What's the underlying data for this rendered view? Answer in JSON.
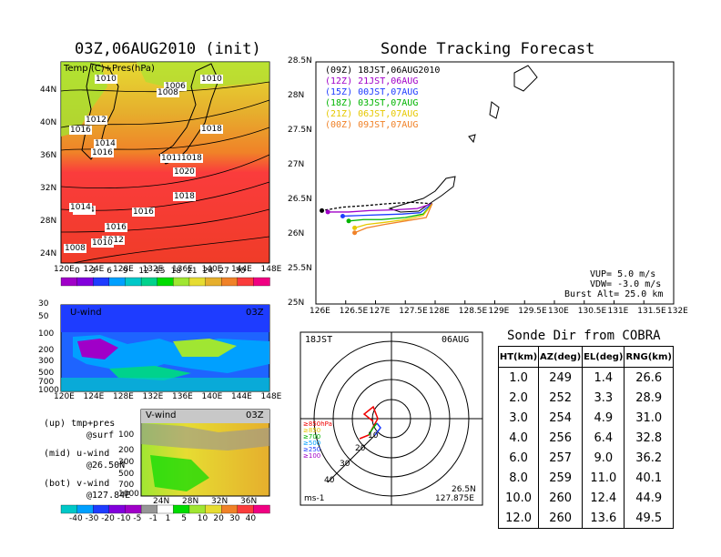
{
  "init_panel": {
    "title": "03Z,06AUG2010 (init)",
    "field_label": "Temp (C)+Pres(hPa)",
    "lat_labels": [
      "44N",
      "40N",
      "36N",
      "32N",
      "28N",
      "24N"
    ],
    "lon_labels": [
      "120E",
      "124E",
      "128E",
      "132E",
      "136E",
      "140E",
      "144E",
      "148E"
    ],
    "isobar_labels": [
      "1010",
      "1006",
      "1010",
      "1008",
      "1014",
      "1012",
      "1016",
      "1016",
      "1014",
      "1016",
      "1018",
      "1011",
      "1018",
      "1020",
      "1018",
      "1014",
      "1016",
      "1012",
      "1010",
      "1008"
    ],
    "colorbar": [
      "0",
      "3",
      "6",
      "9",
      "12",
      "15",
      "18",
      "21",
      "24",
      "27",
      "30"
    ],
    "colorbar_colors": [
      "#a000c8",
      "#8200dc",
      "#1e3cff",
      "#00a0ff",
      "#00c8c8",
      "#00d28c",
      "#00dc00",
      "#a0e632",
      "#e6dc32",
      "#e6af2d",
      "#f08228",
      "#fa3c3c",
      "#f00082"
    ]
  },
  "uwind_panel": {
    "label": "U-wind",
    "time": "03Z",
    "pres_labels": [
      "30",
      "50",
      "100",
      "200",
      "300",
      "500",
      "700",
      "1000"
    ]
  },
  "vwind_panel": {
    "label": "V-wind",
    "time": "03Z",
    "pres_labels": [
      "100",
      "200",
      "300",
      "500",
      "700",
      "1000"
    ],
    "lat_labels": [
      "24N",
      "28N",
      "32N",
      "36N"
    ]
  },
  "legend_notes": {
    "line1": "(up) tmp+pres",
    "line1b": "@surf",
    "line2": "(mid) u-wind",
    "line2b": "@26.50N",
    "line3": "(bot) v-wind",
    "line3b": "@127.84E"
  },
  "wind_colorbar": [
    "-40",
    "-30",
    "-20",
    "-10",
    "-5",
    "-1",
    "1",
    "5",
    "10",
    "20",
    "30",
    "40"
  ],
  "track_panel": {
    "title": "Sonde Tracking Forecast",
    "legend": [
      {
        "text": "(09Z)  18JST,06AUG2010",
        "color": "#000000"
      },
      {
        "text": "(12Z)  21JST,06AUG",
        "color": "#a000c8"
      },
      {
        "text": "(15Z)  00JST,07AUG",
        "color": "#1e3cff"
      },
      {
        "text": "(18Z)  03JST,07AUG",
        "color": "#00b400"
      },
      {
        "text": "(21Z)  06JST,07AUG",
        "color": "#e6c800"
      },
      {
        "text": "(00Z)  09JST,07AUG",
        "color": "#f08228"
      }
    ],
    "lat_labels": [
      "28.5N",
      "28N",
      "27.5N",
      "27N",
      "26.5N",
      "26N",
      "25.5N",
      "25N"
    ],
    "lon_labels": [
      "126E",
      "126.5E",
      "127E",
      "127.5E",
      "128E",
      "128.5E",
      "129E",
      "129.5E",
      "130E",
      "130.5E",
      "131E",
      "131.5E",
      "132E"
    ],
    "params": {
      "vup": "VUP=  5.0  m/s",
      "vdw": "VDW= -3.0  m/s",
      "burst": "Burst Alt= 25.0  km"
    }
  },
  "hodograph": {
    "time_label": "18JST",
    "date_label": "06AUG",
    "levels": [
      "≥850hPa",
      "≥850",
      "≥700",
      "≥500",
      "≥250",
      "≥100"
    ],
    "level_colors": [
      "#f00000",
      "#e6c800",
      "#00b400",
      "#00a0ff",
      "#1e3cff",
      "#a000c8"
    ],
    "ring_labels": [
      "10",
      "20",
      "30",
      "40"
    ],
    "unit": "ms-1",
    "lat": "26.5N",
    "lon": "127.875E"
  },
  "cobra_table": {
    "title": "Sonde Dir from COBRA",
    "headers": [
      "HT(km)",
      "AZ(deg)",
      "EL(deg)",
      "RNG(km)"
    ],
    "rows": [
      [
        "1.0",
        "249",
        "1.4",
        "26.6"
      ],
      [
        "2.0",
        "252",
        "3.3",
        "28.9"
      ],
      [
        "3.0",
        "254",
        "4.9",
        "31.0"
      ],
      [
        "4.0",
        "256",
        "6.4",
        "32.8"
      ],
      [
        "6.0",
        "257",
        "9.0",
        "36.2"
      ],
      [
        "8.0",
        "259",
        "11.0",
        "40.1"
      ],
      [
        "10.0",
        "260",
        "12.4",
        "44.9"
      ],
      [
        "12.0",
        "260",
        "13.6",
        "49.5"
      ]
    ]
  },
  "chart_data": [
    {
      "type": "heatmap",
      "title": "03Z,06AUG2010 (init)",
      "xlabel": "",
      "ylabel": "",
      "x_ticks": [
        "120E",
        "124E",
        "128E",
        "132E",
        "136E",
        "140E",
        "144E",
        "148E"
      ],
      "y_ticks": [
        "24N",
        "28N",
        "32N",
        "36N",
        "40N",
        "44N"
      ],
      "colorbar_levels": [
        0,
        3,
        6,
        9,
        12,
        15,
        18,
        21,
        24,
        27,
        30
      ]
    },
    {
      "type": "line",
      "title": "Sonde Tracking Forecast",
      "xlim": [
        126,
        132
      ],
      "ylim": [
        25,
        28.5
      ],
      "series": [
        {
          "name": "(09Z)  18JST,06AUG2010",
          "color": "#000000",
          "x": [
            127.95,
            127.6,
            127.2,
            126.8,
            126.45,
            126.1
          ],
          "y": [
            26.45,
            26.47,
            26.45,
            26.42,
            26.4,
            26.35
          ]
        },
        {
          "name": "(12Z)  21JST,06AUG",
          "color": "#a000c8",
          "x": [
            127.95,
            127.7,
            127.3,
            126.9,
            126.55,
            126.2
          ],
          "y": [
            26.45,
            26.38,
            26.36,
            26.35,
            26.33,
            26.33
          ]
        },
        {
          "name": "(15Z)  00JST,07AUG",
          "color": "#1e3cff",
          "x": [
            127.95,
            127.75,
            127.45,
            127.1,
            126.75,
            126.45
          ],
          "y": [
            26.45,
            26.32,
            26.3,
            26.29,
            26.28,
            26.27
          ]
        },
        {
          "name": "(18Z)  03JST,07AUG",
          "color": "#00b400",
          "x": [
            127.95,
            127.8,
            127.5,
            127.1,
            126.8,
            126.55
          ],
          "y": [
            26.45,
            26.3,
            26.25,
            26.22,
            26.22,
            26.2
          ]
        },
        {
          "name": "(21Z)  06JST,07AUG",
          "color": "#e6c800",
          "x": [
            127.95,
            127.8,
            127.5,
            127.15,
            126.85,
            126.65
          ],
          "y": [
            26.45,
            26.28,
            26.22,
            26.18,
            26.15,
            26.1
          ]
        },
        {
          "name": "(00Z)  09JST,07AUG",
          "color": "#f08228",
          "x": [
            127.95,
            127.85,
            127.5,
            127.15,
            126.85,
            126.65
          ],
          "y": [
            26.45,
            26.25,
            26.2,
            26.15,
            26.1,
            26.03
          ]
        }
      ]
    },
    {
      "type": "table",
      "title": "Sonde Dir from COBRA",
      "columns": [
        "HT(km)",
        "AZ(deg)",
        "EL(deg)",
        "RNG(km)"
      ],
      "rows": [
        [
          1.0,
          249,
          1.4,
          26.6
        ],
        [
          2.0,
          252,
          3.3,
          28.9
        ],
        [
          3.0,
          254,
          4.9,
          31.0
        ],
        [
          4.0,
          256,
          6.4,
          32.8
        ],
        [
          6.0,
          257,
          9.0,
          36.2
        ],
        [
          8.0,
          259,
          11.0,
          40.1
        ],
        [
          10.0,
          260,
          12.4,
          44.9
        ],
        [
          12.0,
          260,
          13.6,
          49.5
        ]
      ]
    }
  ]
}
